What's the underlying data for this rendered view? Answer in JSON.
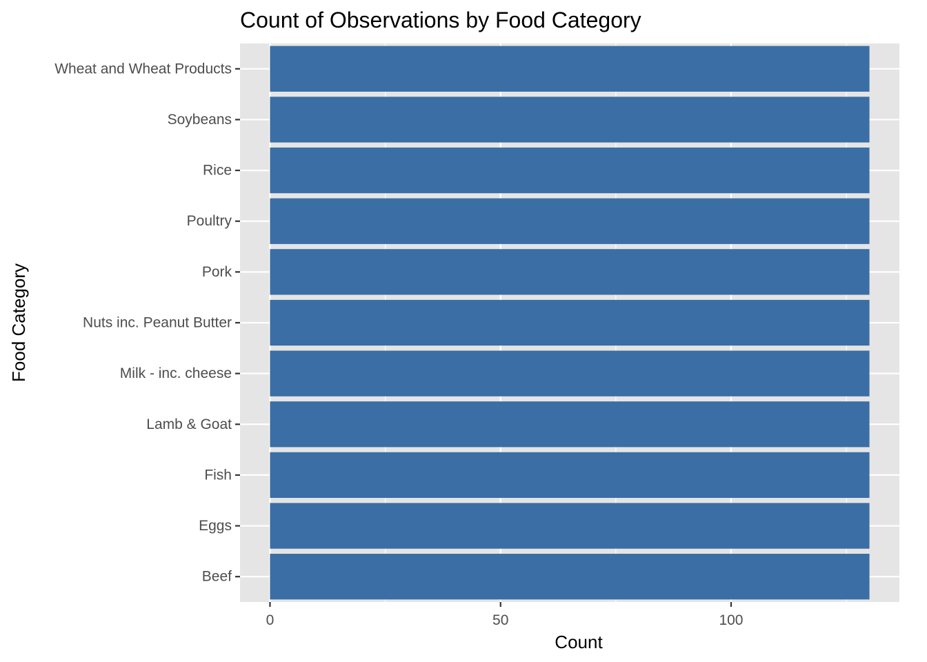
{
  "chart_data": {
    "type": "bar",
    "orientation": "horizontal",
    "title": "Count of Observations by Food Category",
    "xlabel": "Count",
    "ylabel": "Food Category",
    "categories": [
      "Beef",
      "Eggs",
      "Fish",
      "Lamb & Goat",
      "Milk - inc. cheese",
      "Nuts inc. Peanut Butter",
      "Pork",
      "Poultry",
      "Rice",
      "Soybeans",
      "Wheat and Wheat Products"
    ],
    "values": [
      130,
      130,
      130,
      130,
      130,
      130,
      130,
      130,
      130,
      130,
      130
    ],
    "xlim": [
      -6.5,
      136.5
    ],
    "x_ticks": [
      0,
      50,
      100
    ],
    "x_minor_ticks": [
      25,
      75,
      125
    ],
    "grid": true,
    "colors": {
      "bar": "#3a6ea5",
      "panel": "#e5e5e5",
      "grid": "#ffffff",
      "tick_text": "#4d4d4d",
      "tick_mark": "#333333"
    }
  }
}
